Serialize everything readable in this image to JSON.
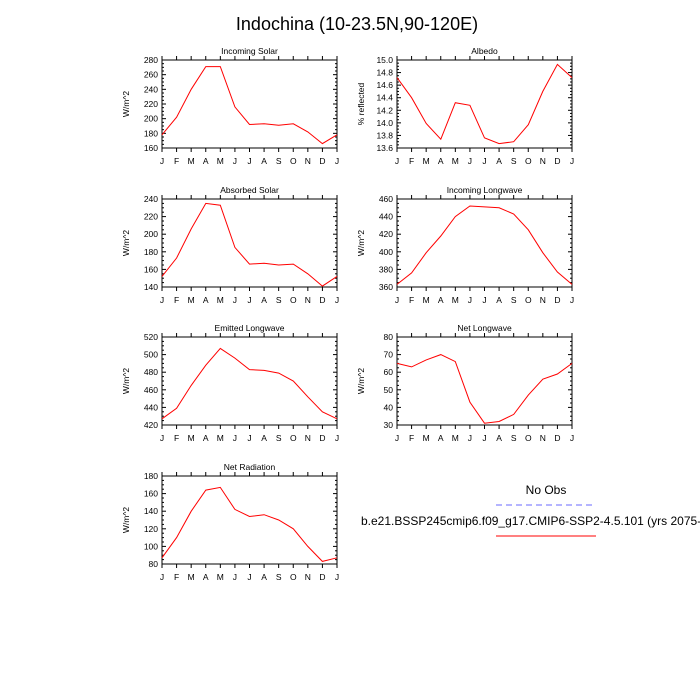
{
  "title": "Indochina (10-23.5N,90-120E)",
  "colors": {
    "model_line": "#ff0000",
    "obs_line": "#6a6aff",
    "axis": "#000000"
  },
  "legend": {
    "obs_label": "No Obs",
    "model_label": "b.e21.BSSP245cmip6.f09_g17.CMIP6-SSP2-4.5.101 (yrs 2075-"
  },
  "chart_data": [
    {
      "type": "line",
      "title": "Incoming Solar",
      "ylabel": "W/m^2",
      "categories": [
        "J",
        "F",
        "M",
        "A",
        "M",
        "J",
        "J",
        "A",
        "S",
        "O",
        "N",
        "D",
        "J"
      ],
      "ylim": [
        160,
        280
      ],
      "yticks": [
        "160",
        "180",
        "200",
        "220",
        "240",
        "260",
        "280"
      ],
      "grid": false,
      "series": [
        {
          "values": [
            178,
            202,
            240,
            271,
            271,
            216,
            192,
            193,
            191,
            193,
            182,
            166,
            178
          ]
        }
      ]
    },
    {
      "type": "line",
      "title": "Albedo",
      "ylabel": "% reflected",
      "categories": [
        "J",
        "F",
        "M",
        "A",
        "M",
        "J",
        "J",
        "A",
        "S",
        "O",
        "N",
        "D",
        "J"
      ],
      "ylim": [
        13.6,
        15.0
      ],
      "yticks": [
        "13.6",
        "13.8",
        "14.0",
        "14.2",
        "14.4",
        "14.6",
        "14.8",
        "15.0"
      ],
      "grid": false,
      "series": [
        {
          "values": [
            14.72,
            14.4,
            13.99,
            13.74,
            14.32,
            14.28,
            13.76,
            13.67,
            13.7,
            13.97,
            14.5,
            14.93,
            14.72
          ]
        }
      ]
    },
    {
      "type": "line",
      "title": "Absorbed Solar",
      "ylabel": "W/m^2",
      "categories": [
        "J",
        "F",
        "M",
        "A",
        "M",
        "J",
        "J",
        "A",
        "S",
        "O",
        "N",
        "D",
        "J"
      ],
      "ylim": [
        140,
        240
      ],
      "yticks": [
        "140",
        "160",
        "180",
        "200",
        "220",
        "240"
      ],
      "grid": false,
      "series": [
        {
          "values": [
            152,
            173,
            206,
            235,
            233,
            185,
            166,
            167,
            165,
            166,
            155,
            141,
            152
          ]
        }
      ]
    },
    {
      "type": "line",
      "title": "Incoming Longwave",
      "ylabel": "W/m^2",
      "categories": [
        "J",
        "F",
        "M",
        "A",
        "M",
        "J",
        "J",
        "A",
        "S",
        "O",
        "N",
        "D",
        "J"
      ],
      "ylim": [
        360,
        460
      ],
      "yticks": [
        "360",
        "380",
        "400",
        "420",
        "440",
        "460"
      ],
      "grid": false,
      "series": [
        {
          "values": [
            363,
            376,
            399,
            418,
            440,
            452,
            451,
            450,
            443,
            425,
            399,
            377,
            363
          ]
        }
      ]
    },
    {
      "type": "line",
      "title": "Emitted Longwave",
      "ylabel": "W/m^2",
      "categories": [
        "J",
        "F",
        "M",
        "A",
        "M",
        "J",
        "J",
        "A",
        "S",
        "O",
        "N",
        "D",
        "J"
      ],
      "ylim": [
        420,
        520
      ],
      "yticks": [
        "420",
        "440",
        "460",
        "480",
        "500",
        "520"
      ],
      "grid": false,
      "series": [
        {
          "values": [
            427,
            439,
            465,
            488,
            507,
            496,
            483,
            482,
            479,
            470,
            452,
            435,
            427
          ]
        }
      ]
    },
    {
      "type": "line",
      "title": "Net Longwave",
      "ylabel": "W/m^2",
      "categories": [
        "J",
        "F",
        "M",
        "A",
        "M",
        "J",
        "J",
        "A",
        "S",
        "O",
        "N",
        "D",
        "J"
      ],
      "ylim": [
        30,
        80
      ],
      "yticks": [
        "30",
        "40",
        "50",
        "60",
        "70",
        "80"
      ],
      "grid": false,
      "series": [
        {
          "values": [
            65,
            63,
            67,
            70,
            66,
            43,
            31,
            32,
            36,
            47,
            56,
            59,
            65
          ]
        }
      ]
    },
    {
      "type": "line",
      "title": "Net Radiation",
      "ylabel": "W/m^2",
      "categories": [
        "J",
        "F",
        "M",
        "A",
        "M",
        "J",
        "J",
        "A",
        "S",
        "O",
        "N",
        "D",
        "J"
      ],
      "ylim": [
        80,
        180
      ],
      "yticks": [
        "80",
        "100",
        "120",
        "140",
        "160",
        "180"
      ],
      "grid": false,
      "series": [
        {
          "values": [
            87,
            110,
            140,
            164,
            167,
            142,
            134,
            136,
            130,
            120,
            100,
            83,
            87
          ]
        }
      ]
    }
  ]
}
